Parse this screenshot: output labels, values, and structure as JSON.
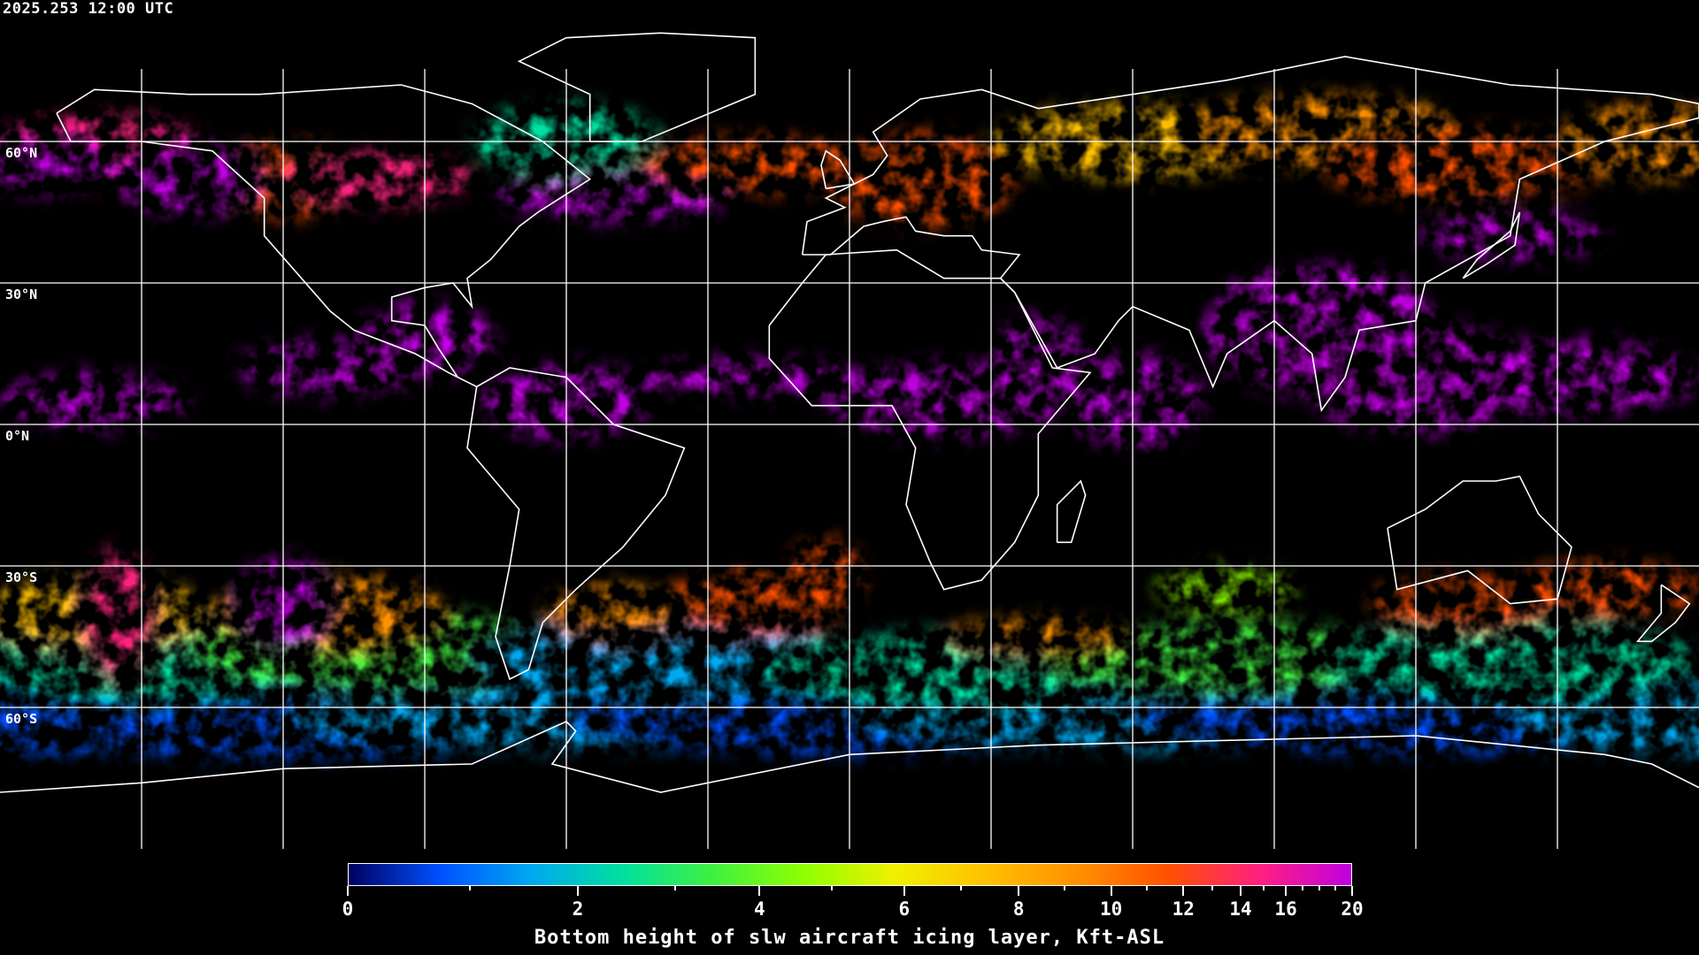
{
  "timestamp": "2025.253 12:00 UTC",
  "map": {
    "projection": "equirectangular",
    "lon_range": [
      -180,
      180
    ],
    "lat_range": [
      -90,
      90
    ],
    "gridlines": true,
    "grid_spacing_deg": 30,
    "background": "#000000",
    "coastline_color": "#ffffff",
    "lat_labels": [
      "60°N",
      "30°N",
      "0°N",
      "30°S",
      "60°S"
    ]
  },
  "colorbar": {
    "title": "Bottom height of slw aircraft icing layer, Kft-ASL",
    "range": [
      0,
      20
    ],
    "major_ticks": [
      "0",
      "2",
      "4",
      "6",
      "8",
      "10",
      "12",
      "14",
      "16",
      "20"
    ],
    "minor_ticks": [
      1,
      3,
      5,
      7,
      9,
      11,
      13,
      15,
      17,
      18,
      19
    ],
    "palette": [
      "#000060",
      "#0050ff",
      "#00a8f0",
      "#00e0a0",
      "#40f040",
      "#90ff00",
      "#f0f000",
      "#ffc000",
      "#ff9000",
      "#ff5000",
      "#ff2080",
      "#c000e0"
    ]
  }
}
